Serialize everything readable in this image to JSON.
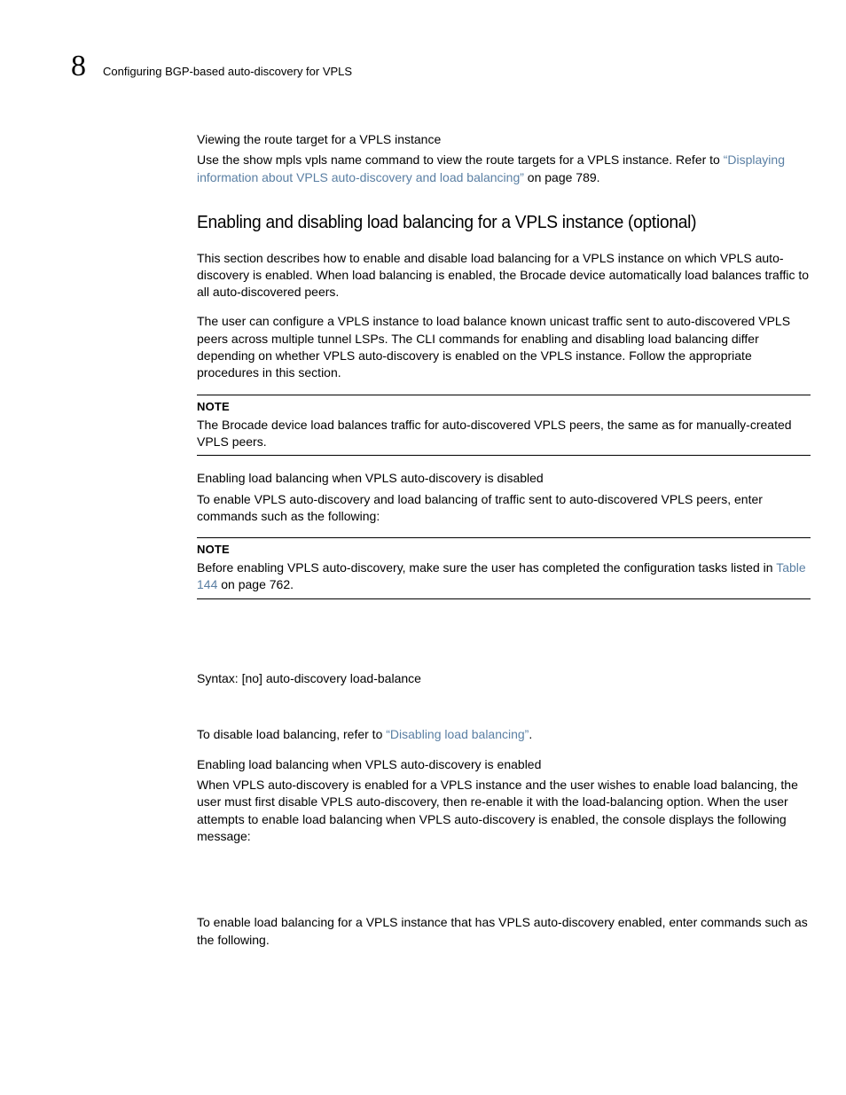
{
  "colors": {
    "text": "#000000",
    "link": "#5a7fa3",
    "rule": "#000000",
    "background": "#ffffff"
  },
  "typography": {
    "body_family": "Arial, Helvetica, sans-serif",
    "body_size_pt": 10.5,
    "h2_size_pt": 15,
    "chapter_num_size_pt": 26,
    "line_height": 1.38
  },
  "header": {
    "chapter_number": "8",
    "running_title": "Configuring BGP-based auto-discovery for VPLS"
  },
  "section_view_rt": {
    "heading": "Viewing the route target for a VPLS instance",
    "p1_prefix": "Use the show mpls vpls name command to view the route targets for a VPLS instance. Refer to ",
    "p1_link": "“Displaying information about VPLS auto-discovery and load balancing”",
    "p1_suffix": " on page 789."
  },
  "section_loadbal": {
    "h2": "Enabling and disabling load balancing for a VPLS instance (optional)",
    "p1": "This section describes how to enable and disable load balancing for a VPLS instance on which VPLS auto-discovery is enabled. When load balancing is enabled, the Brocade device automatically load balances traffic to all auto-discovered peers.",
    "p2": "The user can configure a VPLS instance to load balance known unicast traffic sent to auto-discovered VPLS peers across multiple tunnel LSPs. The CLI commands for enabling and disabling load balancing differ depending on whether VPLS auto-discovery is enabled on the VPLS instance. Follow the appropriate procedures in this section.",
    "note1": {
      "label": "NOTE",
      "body": "The Brocade device load balances traffic for auto-discovered VPLS peers, the same as for manually-created VPLS peers."
    },
    "sub1_heading": "Enabling load balancing when VPLS auto-discovery is disabled",
    "sub1_p1": "To enable VPLS auto-discovery and load balancing of traffic sent to auto-discovered VPLS peers, enter commands such as the following:",
    "note2": {
      "label": "NOTE",
      "body_prefix": "Before enabling VPLS auto-discovery, make sure the user has completed the configuration tasks listed in ",
      "body_link": "Table 144",
      "body_suffix": " on page 762."
    },
    "syntax": "Syntax:  [no] auto-discovery load-balance",
    "disable_prefix": "To disable load balancing, refer to ",
    "disable_link": "“Disabling load balancing”",
    "disable_suffix": ".",
    "sub2_heading": "Enabling load balancing when VPLS auto-discovery is enabled",
    "sub2_p1": "When VPLS auto-discovery is enabled for a VPLS instance and the user wishes to enable load balancing, the user must first disable VPLS auto-discovery, then re-enable it with the load-balancing option.   When the user attempts to enable load balancing when VPLS auto-discovery is enabled, the console displays the following message:",
    "sub2_p2": "To enable load balancing for a VPLS instance that has VPLS auto-discovery enabled, enter commands such as the following."
  }
}
